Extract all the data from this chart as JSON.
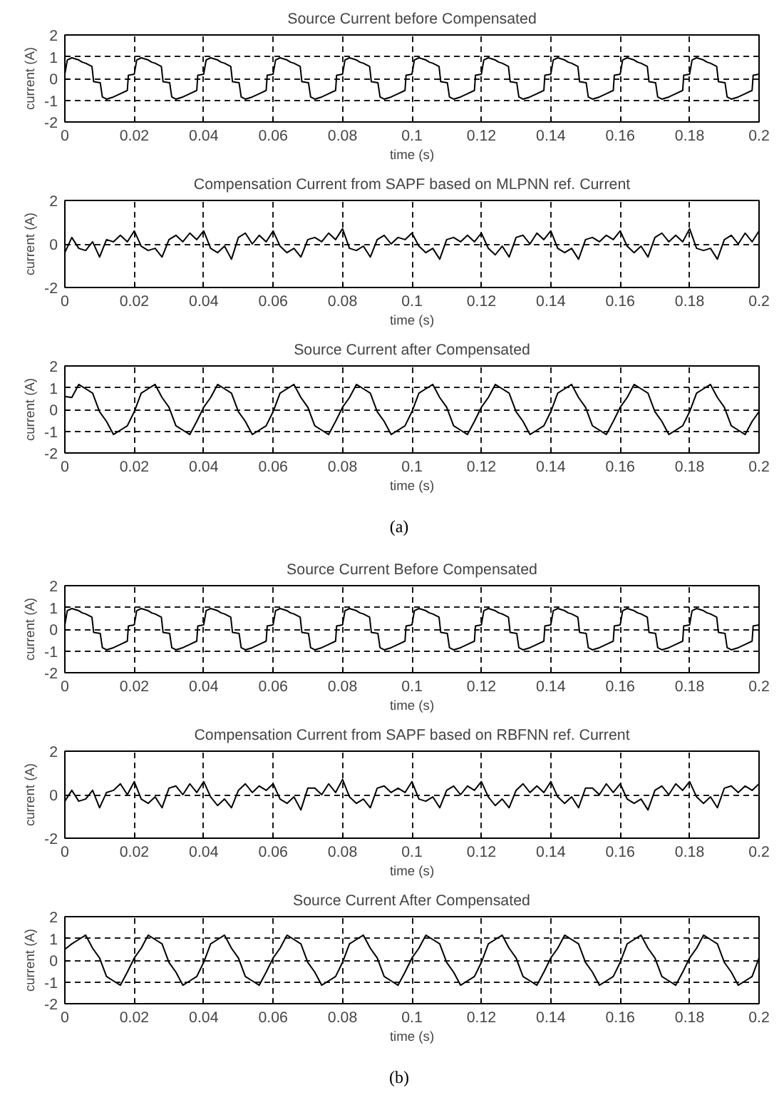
{
  "chart_data": [
    {
      "type": "line",
      "title": "Source Current before Compensated",
      "xlabel": "time (s)",
      "ylabel": "current (A)",
      "xlim": [
        0,
        0.2
      ],
      "xticks": [
        0,
        0.02,
        0.04,
        0.06,
        0.08,
        0.1,
        0.12,
        0.14,
        0.16,
        0.18,
        0.2
      ],
      "ylim": [
        -2,
        2
      ],
      "yticks": [
        -2,
        -1,
        0,
        1,
        2
      ],
      "grid": true,
      "line_style": "solid",
      "x": [
        0,
        0.0007,
        0.002,
        0.004,
        0.005,
        0.006,
        0.0078,
        0.0083,
        0.0102,
        0.0108,
        0.012,
        0.014,
        0.016,
        0.018,
        0.0183,
        0.02,
        0.0207,
        0.022,
        0.024,
        0.025,
        0.026,
        0.0278,
        0.0283,
        0.0302,
        0.0308,
        0.032,
        0.034,
        0.036,
        0.038,
        0.0383,
        0.04,
        0.0407,
        0.042,
        0.044,
        0.045,
        0.046,
        0.0478,
        0.0483,
        0.0502,
        0.0508,
        0.052,
        0.054,
        0.056,
        0.058,
        0.0583,
        0.06,
        0.0607,
        0.062,
        0.064,
        0.065,
        0.066,
        0.0678,
        0.0683,
        0.0702,
        0.0708,
        0.072,
        0.074,
        0.076,
        0.078,
        0.0783,
        0.08,
        0.0807,
        0.082,
        0.084,
        0.085,
        0.086,
        0.0878,
        0.0883,
        0.0902,
        0.0908,
        0.092,
        0.094,
        0.096,
        0.098,
        0.0983,
        0.1,
        0.1007,
        0.102,
        0.104,
        0.105,
        0.106,
        0.1078,
        0.1083,
        0.1102,
        0.1108,
        0.112,
        0.114,
        0.116,
        0.118,
        0.1183,
        0.12,
        0.1207,
        0.122,
        0.124,
        0.125,
        0.126,
        0.1278,
        0.1283,
        0.1302,
        0.1308,
        0.132,
        0.134,
        0.136,
        0.138,
        0.1383,
        0.14,
        0.1407,
        0.142,
        0.144,
        0.145,
        0.146,
        0.1478,
        0.1483,
        0.1502,
        0.1508,
        0.152,
        0.154,
        0.156,
        0.158,
        0.1583,
        0.16,
        0.1607,
        0.162,
        0.164,
        0.165,
        0.166,
        0.1678,
        0.1683,
        0.1702,
        0.1708,
        0.172,
        0.174,
        0.176,
        0.178,
        0.1783,
        0.18,
        0.1807,
        0.182,
        0.184,
        0.185,
        0.186,
        0.1878,
        0.1883,
        0.1902,
        0.1908,
        0.192,
        0.194,
        0.196,
        0.198,
        0.1983,
        0.2
      ],
      "series": [
        {
          "color": "#000000",
          "values": [
            0.2,
            0.85,
            0.95,
            0.85,
            0.75,
            0.7,
            0.55,
            -0.15,
            -0.2,
            -0.85,
            -0.95,
            -0.85,
            -0.7,
            -0.55,
            0.15,
            0.2,
            0.85,
            0.95,
            0.85,
            0.75,
            0.7,
            0.55,
            -0.15,
            -0.2,
            -0.85,
            -0.95,
            -0.85,
            -0.7,
            -0.55,
            0.15,
            0.2,
            0.85,
            0.95,
            0.85,
            0.75,
            0.7,
            0.55,
            -0.15,
            -0.2,
            -0.85,
            -0.95,
            -0.85,
            -0.7,
            -0.55,
            0.15,
            0.2,
            0.85,
            0.95,
            0.85,
            0.75,
            0.7,
            0.55,
            -0.15,
            -0.2,
            -0.85,
            -0.95,
            -0.85,
            -0.7,
            -0.55,
            0.15,
            0.2,
            0.85,
            0.95,
            0.85,
            0.75,
            0.7,
            0.55,
            -0.15,
            -0.2,
            -0.85,
            -0.95,
            -0.85,
            -0.7,
            -0.55,
            0.15,
            0.2,
            0.85,
            0.95,
            0.85,
            0.75,
            0.7,
            0.55,
            -0.15,
            -0.2,
            -0.85,
            -0.95,
            -0.85,
            -0.7,
            -0.55,
            0.15,
            0.2,
            0.85,
            0.95,
            0.85,
            0.75,
            0.7,
            0.55,
            -0.15,
            -0.2,
            -0.85,
            -0.95,
            -0.85,
            -0.7,
            -0.55,
            0.15,
            0.2,
            0.85,
            0.95,
            0.85,
            0.75,
            0.7,
            0.55,
            -0.15,
            -0.2,
            -0.85,
            -0.95,
            -0.85,
            -0.7,
            -0.55,
            0.15,
            0.2,
            0.85,
            0.95,
            0.85,
            0.75,
            0.7,
            0.55,
            -0.15,
            -0.2,
            -0.85,
            -0.95,
            -0.85,
            -0.7,
            -0.55,
            0.15,
            0.2,
            0.85,
            0.95,
            0.85,
            0.75,
            0.7,
            0.55,
            -0.15,
            -0.2,
            -0.85,
            -0.95,
            -0.85,
            -0.7,
            -0.55,
            0.15,
            0.2
          ]
        }
      ]
    },
    {
      "type": "line",
      "title": "Compensation Current from SAPF based on MLPNN ref. Current",
      "xlabel": "time (s)",
      "ylabel": "current (A)",
      "xlim": [
        0,
        0.2
      ],
      "xticks": [
        0,
        0.02,
        0.04,
        0.06,
        0.08,
        0.1,
        0.12,
        0.14,
        0.16,
        0.18,
        0.2
      ],
      "ylim": [
        -2,
        2
      ],
      "yticks": [
        -2,
        0,
        2
      ],
      "grid": true,
      "line_style": "solid",
      "x": [
        0,
        0.002,
        0.004,
        0.006,
        0.008,
        0.01,
        0.012,
        0.014,
        0.016,
        0.018,
        0.02,
        0.022,
        0.024,
        0.026,
        0.028,
        0.03,
        0.032,
        0.034,
        0.036,
        0.038,
        0.04,
        0.042,
        0.044,
        0.046,
        0.048,
        0.05,
        0.052,
        0.054,
        0.056,
        0.058,
        0.06,
        0.062,
        0.064,
        0.066,
        0.068,
        0.07,
        0.072,
        0.074,
        0.076,
        0.078,
        0.08,
        0.082,
        0.084,
        0.086,
        0.088,
        0.09,
        0.092,
        0.094,
        0.096,
        0.098,
        0.1,
        0.102,
        0.104,
        0.106,
        0.108,
        0.11,
        0.112,
        0.114,
        0.116,
        0.118,
        0.12,
        0.122,
        0.124,
        0.126,
        0.128,
        0.13,
        0.132,
        0.134,
        0.136,
        0.138,
        0.14,
        0.142,
        0.144,
        0.146,
        0.148,
        0.15,
        0.152,
        0.154,
        0.156,
        0.158,
        0.16,
        0.162,
        0.164,
        0.166,
        0.168,
        0.17,
        0.172,
        0.174,
        0.176,
        0.178,
        0.18,
        0.182,
        0.184,
        0.186,
        0.188,
        0.19,
        0.192,
        0.194,
        0.196,
        0.198,
        0.2
      ],
      "series": [
        {
          "color": "#000000",
          "values": [
            -0.4,
            0.3,
            -0.2,
            -0.3,
            0.1,
            -0.6,
            0.2,
            0.1,
            0.4,
            0.1,
            0.6,
            -0.1,
            -0.3,
            -0.2,
            -0.6,
            0.2,
            0.4,
            0.1,
            0.5,
            0.2,
            0.6,
            -0.2,
            -0.4,
            -0.1,
            -0.7,
            0.3,
            0.5,
            0.0,
            0.4,
            0.1,
            0.6,
            -0.1,
            -0.4,
            -0.2,
            -0.6,
            0.2,
            0.3,
            0.1,
            0.5,
            0.2,
            0.7,
            -0.2,
            -0.3,
            -0.1,
            -0.6,
            0.2,
            0.4,
            0.0,
            0.3,
            0.2,
            0.5,
            -0.1,
            -0.4,
            -0.2,
            -0.7,
            0.2,
            0.3,
            0.1,
            0.4,
            0.1,
            0.5,
            -0.2,
            -0.5,
            -0.1,
            -0.6,
            0.3,
            0.4,
            0.0,
            0.5,
            0.2,
            0.6,
            -0.2,
            -0.4,
            -0.2,
            -0.7,
            0.2,
            0.3,
            0.1,
            0.4,
            0.2,
            0.6,
            -0.1,
            -0.4,
            -0.1,
            -0.6,
            0.3,
            0.5,
            0.1,
            0.4,
            0.1,
            0.7,
            -0.2,
            -0.3,
            -0.2,
            -0.7,
            0.2,
            0.4,
            0.0,
            0.5,
            0.1,
            0.6
          ]
        }
      ]
    },
    {
      "type": "line",
      "title": "Source Current after Compensated",
      "xlabel": "time (s)",
      "ylabel": "current (A)",
      "xlim": [
        0,
        0.2
      ],
      "xticks": [
        0,
        0.02,
        0.04,
        0.06,
        0.08,
        0.1,
        0.12,
        0.14,
        0.16,
        0.18,
        0.2
      ],
      "ylim": [
        -2,
        2
      ],
      "yticks": [
        -2,
        -1,
        0,
        1,
        2
      ],
      "grid": true,
      "line_style": "solid",
      "annotations": [
        "(a)"
      ],
      "x": [
        0,
        0.002,
        0.004,
        0.006,
        0.008,
        0.01,
        0.012,
        0.014,
        0.016,
        0.018,
        0.02,
        0.022,
        0.024,
        0.026,
        0.028,
        0.03,
        0.032,
        0.034,
        0.036,
        0.038,
        0.04,
        0.042,
        0.044,
        0.046,
        0.048,
        0.05,
        0.052,
        0.054,
        0.056,
        0.058,
        0.06,
        0.062,
        0.064,
        0.066,
        0.068,
        0.07,
        0.072,
        0.074,
        0.076,
        0.078,
        0.08,
        0.082,
        0.084,
        0.086,
        0.088,
        0.09,
        0.092,
        0.094,
        0.096,
        0.098,
        0.1,
        0.102,
        0.104,
        0.106,
        0.108,
        0.11,
        0.112,
        0.114,
        0.116,
        0.118,
        0.12,
        0.122,
        0.124,
        0.126,
        0.128,
        0.13,
        0.132,
        0.134,
        0.136,
        0.138,
        0.14,
        0.142,
        0.144,
        0.146,
        0.148,
        0.15,
        0.152,
        0.154,
        0.156,
        0.158,
        0.16,
        0.162,
        0.164,
        0.166,
        0.168,
        0.17,
        0.172,
        0.174,
        0.176,
        0.178,
        0.18,
        0.182,
        0.184,
        0.186,
        0.188,
        0.19,
        0.192,
        0.194,
        0.196,
        0.198,
        0.2
      ],
      "series": [
        {
          "color": "#000000",
          "values": [
            0.6,
            0.55,
            1.15,
            0.95,
            0.75,
            -0.1,
            -0.55,
            -1.15,
            -0.95,
            -0.75,
            -0.1,
            0.75,
            0.95,
            1.15,
            0.55,
            0.1,
            -0.75,
            -0.95,
            -1.15,
            -0.55,
            0.1,
            0.55,
            1.15,
            0.95,
            0.75,
            -0.1,
            -0.55,
            -1.15,
            -0.95,
            -0.75,
            -0.1,
            0.75,
            0.95,
            1.15,
            0.55,
            0.1,
            -0.75,
            -0.95,
            -1.15,
            -0.55,
            0.1,
            0.55,
            1.15,
            0.95,
            0.75,
            -0.1,
            -0.55,
            -1.15,
            -0.95,
            -0.75,
            -0.1,
            0.75,
            0.95,
            1.15,
            0.55,
            0.1,
            -0.75,
            -0.95,
            -1.15,
            -0.55,
            0.1,
            0.55,
            1.15,
            0.95,
            0.75,
            -0.1,
            -0.55,
            -1.15,
            -0.95,
            -0.75,
            -0.1,
            0.75,
            0.95,
            1.15,
            0.55,
            0.1,
            -0.75,
            -0.95,
            -1.15,
            -0.55,
            0.1,
            0.55,
            1.15,
            0.95,
            0.75,
            -0.1,
            -0.55,
            -1.15,
            -0.95,
            -0.75,
            -0.1,
            0.75,
            0.95,
            1.15,
            0.55,
            0.1,
            -0.75,
            -0.95,
            -1.15,
            -0.55,
            -0.1
          ]
        }
      ]
    },
    {
      "type": "line",
      "title": "Source Current Before Compensated",
      "xlabel": "time (s)",
      "ylabel": "current (A)",
      "xlim": [
        0,
        0.2
      ],
      "xticks": [
        0,
        0.02,
        0.04,
        0.06,
        0.08,
        0.1,
        0.12,
        0.14,
        0.16,
        0.18,
        0.2
      ],
      "ylim": [
        -2,
        2
      ],
      "yticks": [
        -2,
        -1,
        0,
        1,
        2
      ],
      "grid": true,
      "line_style": "solid",
      "x": [
        0,
        0.0007,
        0.002,
        0.004,
        0.005,
        0.006,
        0.0078,
        0.0083,
        0.0102,
        0.0108,
        0.012,
        0.014,
        0.016,
        0.018,
        0.0183,
        0.02,
        0.0207,
        0.022,
        0.024,
        0.025,
        0.026,
        0.0278,
        0.0283,
        0.0302,
        0.0308,
        0.032,
        0.034,
        0.036,
        0.038,
        0.0383,
        0.04,
        0.0407,
        0.042,
        0.044,
        0.045,
        0.046,
        0.0478,
        0.0483,
        0.0502,
        0.0508,
        0.052,
        0.054,
        0.056,
        0.058,
        0.0583,
        0.06,
        0.0607,
        0.062,
        0.064,
        0.065,
        0.066,
        0.0678,
        0.0683,
        0.0702,
        0.0708,
        0.072,
        0.074,
        0.076,
        0.078,
        0.0783,
        0.08,
        0.0807,
        0.082,
        0.084,
        0.085,
        0.086,
        0.0878,
        0.0883,
        0.0902,
        0.0908,
        0.092,
        0.094,
        0.096,
        0.098,
        0.0983,
        0.1,
        0.1007,
        0.102,
        0.104,
        0.105,
        0.106,
        0.1078,
        0.1083,
        0.1102,
        0.1108,
        0.112,
        0.114,
        0.116,
        0.118,
        0.1183,
        0.12,
        0.1207,
        0.122,
        0.124,
        0.125,
        0.126,
        0.1278,
        0.1283,
        0.1302,
        0.1308,
        0.132,
        0.134,
        0.136,
        0.138,
        0.1383,
        0.14,
        0.1407,
        0.142,
        0.144,
        0.145,
        0.146,
        0.1478,
        0.1483,
        0.1502,
        0.1508,
        0.152,
        0.154,
        0.156,
        0.158,
        0.1583,
        0.16,
        0.1607,
        0.162,
        0.164,
        0.165,
        0.166,
        0.1678,
        0.1683,
        0.1702,
        0.1708,
        0.172,
        0.174,
        0.176,
        0.178,
        0.1783,
        0.18,
        0.1807,
        0.182,
        0.184,
        0.185,
        0.186,
        0.1878,
        0.1883,
        0.1902,
        0.1908,
        0.192,
        0.194,
        0.196,
        0.198,
        0.1983,
        0.2
      ],
      "series": [
        {
          "color": "#000000",
          "values": [
            0.2,
            0.85,
            0.95,
            0.85,
            0.75,
            0.7,
            0.55,
            -0.15,
            -0.2,
            -0.85,
            -0.95,
            -0.85,
            -0.7,
            -0.55,
            0.15,
            0.2,
            0.85,
            0.95,
            0.85,
            0.75,
            0.7,
            0.55,
            -0.15,
            -0.2,
            -0.85,
            -0.95,
            -0.85,
            -0.7,
            -0.55,
            0.15,
            0.2,
            0.85,
            0.95,
            0.85,
            0.75,
            0.7,
            0.55,
            -0.15,
            -0.2,
            -0.85,
            -0.95,
            -0.85,
            -0.7,
            -0.55,
            0.15,
            0.2,
            0.85,
            0.95,
            0.85,
            0.75,
            0.7,
            0.55,
            -0.15,
            -0.2,
            -0.85,
            -0.95,
            -0.85,
            -0.7,
            -0.55,
            0.15,
            0.2,
            0.85,
            0.95,
            0.85,
            0.75,
            0.7,
            0.55,
            -0.15,
            -0.2,
            -0.85,
            -0.95,
            -0.85,
            -0.7,
            -0.55,
            0.15,
            0.2,
            0.85,
            0.95,
            0.85,
            0.75,
            0.7,
            0.55,
            -0.15,
            -0.2,
            -0.85,
            -0.95,
            -0.85,
            -0.7,
            -0.55,
            0.15,
            0.2,
            0.85,
            0.95,
            0.85,
            0.75,
            0.7,
            0.55,
            -0.15,
            -0.2,
            -0.85,
            -0.95,
            -0.85,
            -0.7,
            -0.55,
            0.15,
            0.2,
            0.85,
            0.95,
            0.85,
            0.75,
            0.7,
            0.55,
            -0.15,
            -0.2,
            -0.85,
            -0.95,
            -0.85,
            -0.7,
            -0.55,
            0.15,
            0.2,
            0.85,
            0.95,
            0.85,
            0.75,
            0.7,
            0.55,
            -0.15,
            -0.2,
            -0.85,
            -0.95,
            -0.85,
            -0.7,
            -0.55,
            0.15,
            0.2,
            0.85,
            0.95,
            0.85,
            0.75,
            0.7,
            0.55,
            -0.15,
            -0.2,
            -0.85,
            -0.95,
            -0.85,
            -0.7,
            -0.55,
            0.15,
            0.2
          ]
        }
      ]
    },
    {
      "type": "line",
      "title": "Compensation Current from SAPF based on RBFNN ref. Current",
      "xlabel": "time (s)",
      "ylabel": "current (A)",
      "xlim": [
        0,
        0.2
      ],
      "xticks": [
        0,
        0.02,
        0.04,
        0.06,
        0.08,
        0.1,
        0.12,
        0.14,
        0.16,
        0.18,
        0.2
      ],
      "ylim": [
        -2,
        2
      ],
      "yticks": [
        -2,
        0,
        2
      ],
      "grid": true,
      "line_style": "solid",
      "x": [
        0,
        0.002,
        0.004,
        0.006,
        0.008,
        0.01,
        0.012,
        0.014,
        0.016,
        0.018,
        0.02,
        0.022,
        0.024,
        0.026,
        0.028,
        0.03,
        0.032,
        0.034,
        0.036,
        0.038,
        0.04,
        0.042,
        0.044,
        0.046,
        0.048,
        0.05,
        0.052,
        0.054,
        0.056,
        0.058,
        0.06,
        0.062,
        0.064,
        0.066,
        0.068,
        0.07,
        0.072,
        0.074,
        0.076,
        0.078,
        0.08,
        0.082,
        0.084,
        0.086,
        0.088,
        0.09,
        0.092,
        0.094,
        0.096,
        0.098,
        0.1,
        0.102,
        0.104,
        0.106,
        0.108,
        0.11,
        0.112,
        0.114,
        0.116,
        0.118,
        0.12,
        0.122,
        0.124,
        0.126,
        0.128,
        0.13,
        0.132,
        0.134,
        0.136,
        0.138,
        0.14,
        0.142,
        0.144,
        0.146,
        0.148,
        0.15,
        0.152,
        0.154,
        0.156,
        0.158,
        0.16,
        0.162,
        0.164,
        0.166,
        0.168,
        0.17,
        0.172,
        0.174,
        0.176,
        0.178,
        0.18,
        0.182,
        0.184,
        0.186,
        0.188,
        0.19,
        0.192,
        0.194,
        0.196,
        0.198,
        0.2
      ],
      "series": [
        {
          "color": "#000000",
          "values": [
            -0.3,
            0.2,
            -0.3,
            -0.2,
            0.2,
            -0.6,
            0.1,
            0.2,
            0.5,
            0.0,
            0.6,
            -0.2,
            -0.4,
            -0.1,
            -0.6,
            0.3,
            0.4,
            0.0,
            0.5,
            0.1,
            0.6,
            -0.1,
            -0.5,
            -0.2,
            -0.6,
            0.2,
            0.5,
            0.1,
            0.4,
            0.2,
            0.5,
            -0.2,
            -0.4,
            -0.1,
            -0.7,
            0.3,
            0.3,
            0.0,
            0.5,
            0.1,
            0.7,
            -0.1,
            -0.4,
            -0.2,
            -0.6,
            0.3,
            0.4,
            0.1,
            0.3,
            0.1,
            0.6,
            -0.2,
            -0.3,
            -0.1,
            -0.6,
            0.2,
            0.4,
            0.0,
            0.4,
            0.2,
            0.6,
            -0.1,
            -0.5,
            -0.2,
            -0.6,
            0.2,
            0.5,
            0.1,
            0.4,
            0.1,
            0.6,
            -0.1,
            -0.4,
            -0.1,
            -0.6,
            0.3,
            0.3,
            0.0,
            0.5,
            0.1,
            0.5,
            -0.2,
            -0.4,
            -0.2,
            -0.7,
            0.2,
            0.4,
            0.0,
            0.5,
            0.2,
            0.6,
            -0.1,
            -0.4,
            -0.1,
            -0.6,
            0.3,
            0.4,
            0.1,
            0.4,
            0.2,
            0.5
          ]
        }
      ]
    },
    {
      "type": "line",
      "title": "Source Current After Compensated",
      "xlabel": "time (s)",
      "ylabel": "current (A)",
      "xlim": [
        0,
        0.2
      ],
      "xticks": [
        0,
        0.02,
        0.04,
        0.06,
        0.08,
        0.1,
        0.12,
        0.14,
        0.16,
        0.18,
        0.2
      ],
      "ylim": [
        -2,
        2
      ],
      "yticks": [
        -2,
        -1,
        0,
        1,
        2
      ],
      "grid": true,
      "line_style": "solid",
      "annotations": [
        "(b)"
      ],
      "x": [
        0,
        0.002,
        0.004,
        0.006,
        0.008,
        0.01,
        0.012,
        0.014,
        0.016,
        0.018,
        0.02,
        0.022,
        0.024,
        0.026,
        0.028,
        0.03,
        0.032,
        0.034,
        0.036,
        0.038,
        0.04,
        0.042,
        0.044,
        0.046,
        0.048,
        0.05,
        0.052,
        0.054,
        0.056,
        0.058,
        0.06,
        0.062,
        0.064,
        0.066,
        0.068,
        0.07,
        0.072,
        0.074,
        0.076,
        0.078,
        0.08,
        0.082,
        0.084,
        0.086,
        0.088,
        0.09,
        0.092,
        0.094,
        0.096,
        0.098,
        0.1,
        0.102,
        0.104,
        0.106,
        0.108,
        0.11,
        0.112,
        0.114,
        0.116,
        0.118,
        0.12,
        0.122,
        0.124,
        0.126,
        0.128,
        0.13,
        0.132,
        0.134,
        0.136,
        0.138,
        0.14,
        0.142,
        0.144,
        0.146,
        0.148,
        0.15,
        0.152,
        0.154,
        0.156,
        0.158,
        0.16,
        0.162,
        0.164,
        0.166,
        0.168,
        0.17,
        0.172,
        0.174,
        0.176,
        0.178,
        0.18,
        0.182,
        0.184,
        0.186,
        0.188,
        0.19,
        0.192,
        0.194,
        0.196,
        0.198,
        0.2
      ],
      "series": [
        {
          "color": "#000000",
          "values": [
            0.5,
            0.75,
            0.95,
            1.15,
            0.55,
            0.1,
            -0.75,
            -0.95,
            -1.15,
            -0.55,
            0.1,
            0.55,
            1.15,
            0.95,
            0.75,
            -0.1,
            -0.55,
            -1.15,
            -0.95,
            -0.75,
            -0.1,
            0.75,
            0.95,
            1.15,
            0.55,
            0.1,
            -0.75,
            -0.95,
            -1.15,
            -0.55,
            0.1,
            0.55,
            1.15,
            0.95,
            0.75,
            -0.1,
            -0.55,
            -1.15,
            -0.95,
            -0.75,
            -0.1,
            0.75,
            0.95,
            1.15,
            0.55,
            0.1,
            -0.75,
            -0.95,
            -1.15,
            -0.55,
            0.1,
            0.55,
            1.15,
            0.95,
            0.75,
            -0.1,
            -0.55,
            -1.15,
            -0.95,
            -0.75,
            -0.1,
            0.75,
            0.95,
            1.15,
            0.55,
            0.1,
            -0.75,
            -0.95,
            -1.15,
            -0.55,
            0.1,
            0.55,
            1.15,
            0.95,
            0.75,
            -0.1,
            -0.55,
            -1.15,
            -0.95,
            -0.75,
            -0.1,
            0.75,
            0.95,
            1.15,
            0.55,
            0.1,
            -0.75,
            -0.95,
            -1.15,
            -0.55,
            0.1,
            0.55,
            1.15,
            0.95,
            0.75,
            -0.1,
            -0.55,
            -1.15,
            -0.95,
            -0.75,
            0.1
          ]
        }
      ]
    }
  ]
}
